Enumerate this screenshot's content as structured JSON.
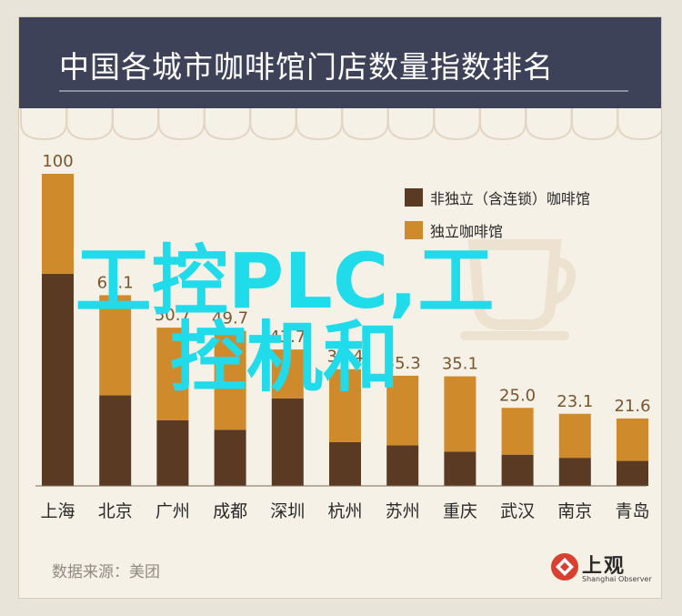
{
  "header": {
    "title": "中国各城市咖啡馆门店数量指数排名"
  },
  "chart_data": {
    "type": "bar",
    "stacked": true,
    "title": "中国各城市咖啡馆门店数量指数排名",
    "categories": [
      "上海",
      "北京",
      "广州",
      "成都",
      "深圳",
      "杭州",
      "苏州",
      "重庆",
      "武汉",
      "南京",
      "青岛"
    ],
    "totals": [
      "100",
      "61.1",
      "50.7",
      "49.7",
      "43.7",
      "37.4",
      "35.3",
      "35.1",
      "25.0",
      "23.1",
      "21.6"
    ],
    "series": [
      {
        "name": "非独立（含连锁）咖啡馆",
        "color": "#5b3a24",
        "values": [
          68,
          29,
          21,
          18,
          28,
          14,
          13,
          11,
          10,
          9,
          8
        ]
      },
      {
        "name": "独立咖啡馆",
        "color": "#cf8a2c",
        "values": [
          32,
          32.1,
          29.7,
          31.7,
          15.7,
          23.4,
          22.3,
          24.1,
          15,
          14.1,
          13.6
        ]
      }
    ],
    "ylim": [
      0,
      100
    ],
    "legend_position": "top-right",
    "grid": false
  },
  "footer": {
    "source": "数据来源：美团",
    "logo_name": "上观",
    "logo_sub": "Shanghai Observer"
  },
  "watermark": {
    "text": "工控PLC,工控机和"
  }
}
